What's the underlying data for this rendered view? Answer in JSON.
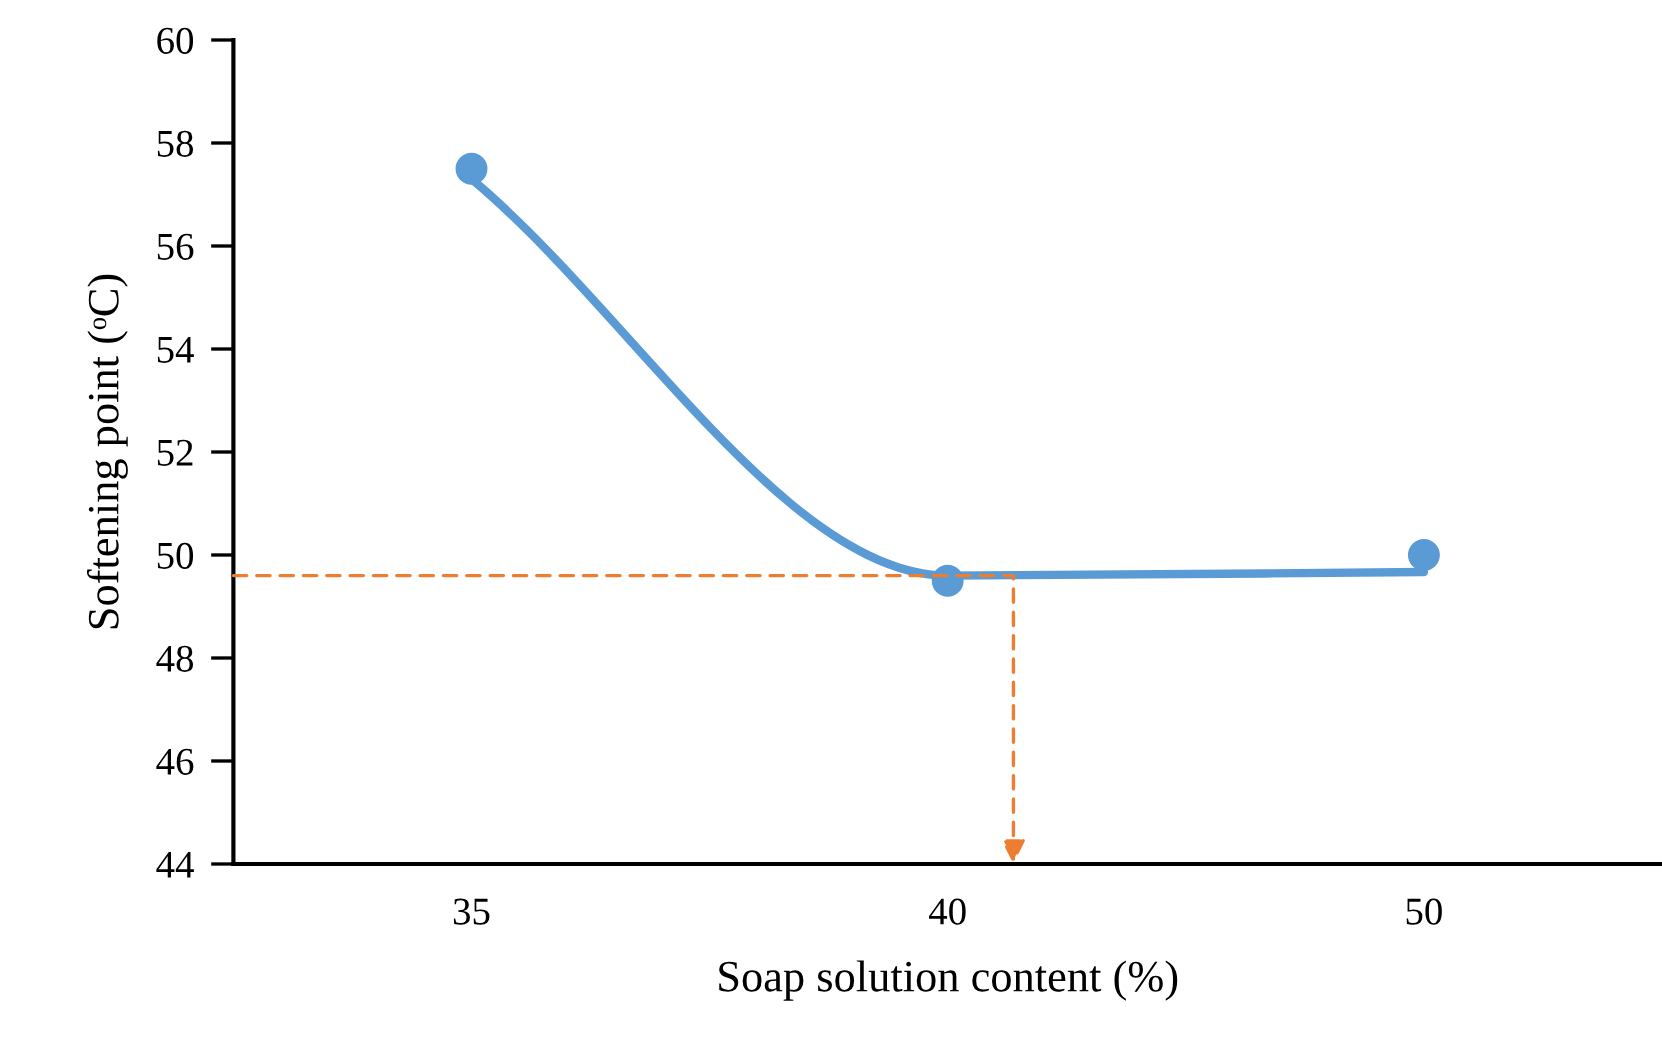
{
  "chart_data": {
    "type": "line",
    "xlabel": "Soap solution content (%)",
    "ylabel": "Softening point (ᵒC)",
    "categories": [
      "35",
      "40",
      "50"
    ],
    "ylim": [
      44,
      60
    ],
    "yticks": [
      44,
      46,
      48,
      50,
      52,
      54,
      56,
      58,
      60
    ],
    "grid": false,
    "series": [
      {
        "type": "scatter",
        "color": "#5b9bd5",
        "marker": "circle",
        "values": [
          57.5,
          49.5,
          50
        ]
      },
      {
        "color": "#5b9bd5",
        "line_style": "solid",
        "values": [
          57.3,
          49.6,
          49.67
        ]
      }
    ],
    "ref_lines": [
      {
        "axis": "y",
        "value": 49.6,
        "color": "#ed7d31",
        "line_style": "dashed"
      }
    ]
  }
}
